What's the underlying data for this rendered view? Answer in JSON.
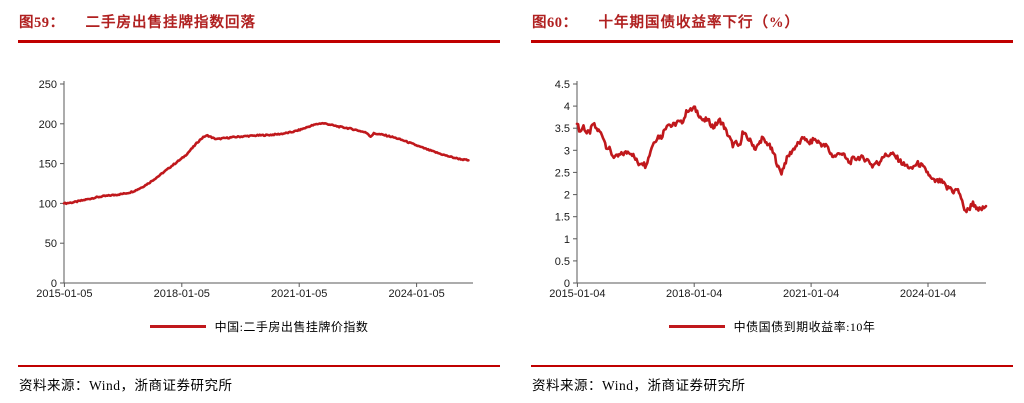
{
  "colors": {
    "accent": "#c00000",
    "title_red": "#b02020",
    "line_red": "#c0181c",
    "axis_gray": "#595959"
  },
  "source": {
    "text": "资料来源：Wind，浙商证券研究所"
  },
  "chart_data": [
    {
      "type": "line",
      "fig_label": "图59：",
      "title": "二手房出售挂牌指数回落",
      "legend": "中国:二手房出售挂牌价指数",
      "xlabel": "",
      "ylabel": "",
      "grid": false,
      "legend_position": "bottom",
      "ylim": [
        0,
        250
      ],
      "y_ticks": [
        0,
        50,
        100,
        150,
        200,
        250
      ],
      "xlim": [
        2015.0,
        2025.45
      ],
      "x_ticks": [
        {
          "pos": 2015.01,
          "label": "2015-01-05"
        },
        {
          "pos": 2018.01,
          "label": "2018-01-05"
        },
        {
          "pos": 2021.01,
          "label": "2021-01-05"
        },
        {
          "pos": 2024.01,
          "label": "2024-01-05"
        }
      ],
      "x_start": 2015.0,
      "x_step_years": 0.0833333,
      "series": [
        {
          "name": "中国:二手房出售挂牌价指数",
          "color": "#c0181c",
          "values": [
            100,
            100.4,
            100.9,
            101.5,
            102.3,
            103.2,
            104.1,
            105,
            105.9,
            106.8,
            107.6,
            108.3,
            108.9,
            109.4,
            109.9,
            110.4,
            110.9,
            111.4,
            112,
            112.7,
            113.6,
            114.8,
            116.4,
            118.4,
            120.6,
            123,
            125.6,
            128.4,
            131.3,
            134.3,
            137.4,
            140.6,
            143.8,
            147,
            150.1,
            153.1,
            156,
            159.5,
            163.5,
            168,
            172.5,
            177,
            181,
            184,
            185.2,
            183.5,
            181.5,
            180.8,
            181.3,
            181.8,
            182.3,
            182.8,
            183.2,
            183.6,
            183.9,
            184.2,
            184.5,
            184.8,
            185,
            185.3,
            185.5,
            185.6,
            185.8,
            186,
            186.3,
            186.7,
            187.1,
            187.6,
            188.2,
            188.9,
            189.8,
            190.8,
            192,
            193.4,
            194.9,
            196.4,
            197.8,
            199,
            200,
            200.6,
            200.3,
            199.5,
            198.5,
            197.5,
            196.6,
            195.9,
            195.2,
            194.5,
            193.7,
            192.8,
            191.8,
            190.7,
            189.5,
            188.2,
            184,
            187.8,
            187.3,
            186.7,
            186,
            185.1,
            184.1,
            183,
            181.8,
            180.5,
            179.1,
            177.6,
            176.1,
            174.6,
            173,
            171.4,
            169.9,
            168.4,
            166.9,
            165.5,
            164.1,
            162.8,
            161.5,
            160.3,
            159.1,
            158,
            157,
            156.1,
            155.3,
            154.7,
            154.2
          ]
        }
      ]
    },
    {
      "type": "line",
      "fig_label": "图60：",
      "title": "十年期国债收益率下行（%）",
      "legend": "中债国债到期收益率:10年",
      "xlabel": "",
      "ylabel": "",
      "grid": false,
      "legend_position": "bottom",
      "ylim": [
        0,
        4.5
      ],
      "y_ticks": [
        0,
        0.5,
        1,
        1.5,
        2,
        2.5,
        3,
        3.5,
        4,
        4.5
      ],
      "xlim": [
        2015.0,
        2025.5
      ],
      "x_ticks": [
        {
          "pos": 2015.01,
          "label": "2015-01-04"
        },
        {
          "pos": 2018.01,
          "label": "2018-01-04"
        },
        {
          "pos": 2021.01,
          "label": "2021-01-04"
        },
        {
          "pos": 2024.01,
          "label": "2024-01-04"
        }
      ],
      "x_start": 2015.0,
      "x_step_years": 0.0833333,
      "series": [
        {
          "name": "中债国债到期收益率:10年",
          "color": "#c0181c",
          "values": [
            3.6,
            3.42,
            3.55,
            3.38,
            3.42,
            3.6,
            3.48,
            3.42,
            3.32,
            3.1,
            3.02,
            2.88,
            2.84,
            2.88,
            2.92,
            2.94,
            2.98,
            2.92,
            2.8,
            2.7,
            2.74,
            2.66,
            2.82,
            3.08,
            3.22,
            3.32,
            3.3,
            3.48,
            3.62,
            3.55,
            3.58,
            3.64,
            3.62,
            3.72,
            3.92,
            3.9,
            3.96,
            3.88,
            3.76,
            3.65,
            3.7,
            3.62,
            3.52,
            3.6,
            3.68,
            3.58,
            3.42,
            3.28,
            3.12,
            3.16,
            3.08,
            3.4,
            3.32,
            3.24,
            3.16,
            3.02,
            3.14,
            3.28,
            3.18,
            3.14,
            3.0,
            2.86,
            2.6,
            2.5,
            2.7,
            2.86,
            2.96,
            3.06,
            3.14,
            3.2,
            3.32,
            3.16,
            3.18,
            3.26,
            3.2,
            3.16,
            3.1,
            3.1,
            2.94,
            2.86,
            2.88,
            2.96,
            2.9,
            2.8,
            2.72,
            2.8,
            2.82,
            2.84,
            2.82,
            2.8,
            2.76,
            2.64,
            2.72,
            2.7,
            2.86,
            2.88,
            2.9,
            2.92,
            2.86,
            2.8,
            2.72,
            2.66,
            2.64,
            2.56,
            2.66,
            2.7,
            2.66,
            2.58,
            2.5,
            2.36,
            2.3,
            2.3,
            2.3,
            2.24,
            2.14,
            2.16,
            2.06,
            2.12,
            2.02,
            1.72,
            1.62,
            1.7,
            1.84,
            1.64,
            1.66,
            1.68,
            1.74
          ]
        }
      ]
    }
  ]
}
